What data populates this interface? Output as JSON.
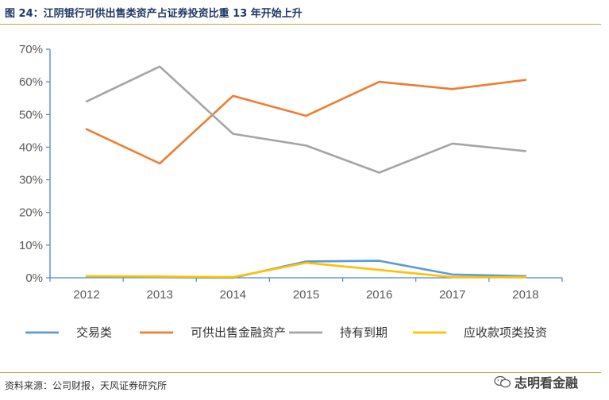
{
  "figure_title": "图 24：江阴银行可供出售类资产占证券投资比重 13 年开始上升",
  "source": "资料来源：公司财报，天风证券研究所",
  "watermark": "志明看金融",
  "chart_data": {
    "type": "line",
    "x": [
      "2012",
      "2013",
      "2014",
      "2015",
      "2016",
      "2017",
      "2018"
    ],
    "yticks": [
      "0%",
      "10%",
      "20%",
      "30%",
      "40%",
      "50%",
      "60%",
      "70%"
    ],
    "ylim": [
      0,
      70
    ],
    "grid": false,
    "legend_position": "bottom",
    "series": [
      {
        "name": "交易类",
        "color": "#5b9bd5",
        "values": [
          0.2,
          0.2,
          0.0,
          5.0,
          5.2,
          1.0,
          0.5
        ]
      },
      {
        "name": "可供出售金融资产",
        "color": "#ed7d31",
        "values": [
          45.5,
          35.0,
          55.7,
          49.6,
          60.0,
          57.8,
          60.6
        ]
      },
      {
        "name": "持有到期",
        "color": "#a5a5a5",
        "values": [
          54.0,
          64.7,
          44.1,
          40.5,
          32.2,
          41.1,
          38.8
        ]
      },
      {
        "name": "应收款项类投资",
        "color": "#ffc000",
        "values": [
          0.5,
          0.4,
          0.2,
          4.6,
          2.4,
          0.2,
          0.2
        ]
      }
    ]
  }
}
